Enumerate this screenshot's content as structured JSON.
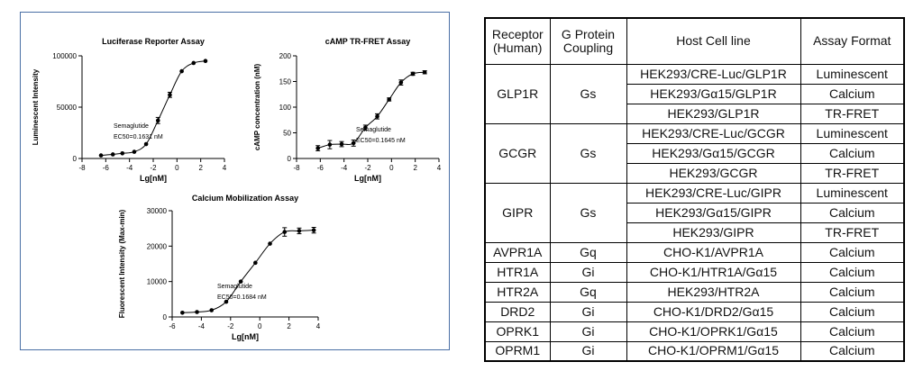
{
  "chart_data": [
    {
      "type": "scatter",
      "title": "Luciferase Reporter Assay",
      "xlabel": "Lg[nM]",
      "ylabel": "Luminescent Intensity",
      "xlim": [
        -8,
        4
      ],
      "ylim": [
        0,
        100000
      ],
      "xticks": [
        "-8",
        "-6",
        "-4",
        "-2",
        "0",
        "2",
        "4"
      ],
      "yticks": [
        "0",
        "50000",
        "100000"
      ],
      "annotation": [
        "Semaglutide",
        "EC50=0.1631 nM"
      ],
      "series": [
        {
          "x": [
            -6.4,
            -5.4,
            -4.6,
            -3.6,
            -2.6,
            -1.6,
            -0.6,
            0.4,
            1.4,
            2.4
          ],
          "y": [
            3000,
            4000,
            5000,
            6500,
            14000,
            37000,
            62000,
            85000,
            93000,
            95000
          ],
          "err": [
            0,
            0,
            0,
            0,
            0,
            3000,
            2500,
            0,
            0,
            0
          ]
        }
      ]
    },
    {
      "type": "scatter",
      "title": "cAMP TR-FRET Assay",
      "xlabel": "Lg[nM]",
      "ylabel": "cAMP concentration (nM)",
      "xlim": [
        -8,
        4
      ],
      "ylim": [
        0,
        200
      ],
      "xticks": [
        "-8",
        "-6",
        "-4",
        "-2",
        "0",
        "2",
        "4"
      ],
      "yticks": [
        "0",
        "50",
        "100",
        "150",
        "200"
      ],
      "annotation": [
        "Semaglutide",
        "EC50=0.1645 nM"
      ],
      "series": [
        {
          "x": [
            -6.2,
            -5.2,
            -4.2,
            -3.2,
            -2.2,
            -1.2,
            -0.2,
            0.8,
            1.8,
            2.8
          ],
          "y": [
            20,
            27,
            28,
            30,
            60,
            82,
            115,
            148,
            165,
            168
          ],
          "err": [
            5,
            8,
            5,
            6,
            5,
            5,
            3,
            5,
            3,
            3
          ]
        }
      ]
    },
    {
      "type": "scatter",
      "title": "Calcium Mobilization Assay",
      "xlabel": "Lg[nM]",
      "ylabel": "Fluorescent Intensity (Max-min)",
      "xlim": [
        -6,
        4
      ],
      "ylim": [
        0,
        30000
      ],
      "xticks": [
        "-6",
        "-4",
        "-2",
        "0",
        "2",
        "4"
      ],
      "yticks": [
        "0",
        "10000",
        "20000",
        "30000"
      ],
      "annotation": [
        "Semaglutide",
        "EC50=0.1684 nM"
      ],
      "series": [
        {
          "x": [
            -5.3,
            -4.3,
            -3.3,
            -2.3,
            -1.3,
            -0.3,
            0.7,
            1.7,
            2.7,
            3.7
          ],
          "y": [
            1200,
            1400,
            1900,
            4300,
            10000,
            15300,
            20700,
            24000,
            24300,
            24500
          ],
          "err": [
            0,
            0,
            0,
            0,
            0,
            0,
            0,
            1200,
            800,
            800
          ]
        }
      ]
    }
  ],
  "table": {
    "headers": [
      [
        "Receptor",
        "(Human)"
      ],
      [
        "G Protein",
        "Coupling"
      ],
      [
        "Host Cell line"
      ],
      [
        "Assay Format"
      ]
    ],
    "groups": [
      {
        "receptor": "GLP1R",
        "coupling": "Gs",
        "rows": [
          {
            "cell": "HEK293/CRE-Luc/GLP1R",
            "format": "Luminescent"
          },
          {
            "cell": "HEK293/Gα15/GLP1R",
            "format": "Calcium"
          },
          {
            "cell": "HEK293/GLP1R",
            "format": "TR-FRET"
          }
        ]
      },
      {
        "receptor": "GCGR",
        "coupling": "Gs",
        "rows": [
          {
            "cell": "HEK293/CRE-Luc/GCGR",
            "format": "Luminescent"
          },
          {
            "cell": "HEK293/Gα15/GCGR",
            "format": "Calcium"
          },
          {
            "cell": "HEK293/GCGR",
            "format": "TR-FRET"
          }
        ]
      },
      {
        "receptor": "GIPR",
        "coupling": "Gs",
        "rows": [
          {
            "cell": "HEK293/CRE-Luc/GIPR",
            "format": "Luminescent"
          },
          {
            "cell": "HEK293/Gα15/GIPR",
            "format": "Calcium"
          },
          {
            "cell": "HEK293/GIPR",
            "format": "TR-FRET"
          }
        ]
      },
      {
        "receptor": "AVPR1A",
        "coupling": "Gq",
        "rows": [
          {
            "cell": "CHO-K1/AVPR1A",
            "format": "Calcium"
          }
        ]
      },
      {
        "receptor": "HTR1A",
        "coupling": "Gi",
        "rows": [
          {
            "cell": "CHO-K1/HTR1A/Gα15",
            "format": "Calcium"
          }
        ]
      },
      {
        "receptor": "HTR2A",
        "coupling": "Gq",
        "rows": [
          {
            "cell": "HEK293/HTR2A",
            "format": "Calcium"
          }
        ]
      },
      {
        "receptor": "DRD2",
        "coupling": "Gi",
        "rows": [
          {
            "cell": "CHO-K1/DRD2/Gα15",
            "format": "Calcium"
          }
        ]
      },
      {
        "receptor": "OPRK1",
        "coupling": "Gi",
        "rows": [
          {
            "cell": "CHO-K1/OPRK1/Gα15",
            "format": "Calcium"
          }
        ]
      },
      {
        "receptor": "OPRM1",
        "coupling": "Gi",
        "rows": [
          {
            "cell": "CHO-K1/OPRM1/Gα15",
            "format": "Calcium"
          }
        ]
      }
    ]
  }
}
